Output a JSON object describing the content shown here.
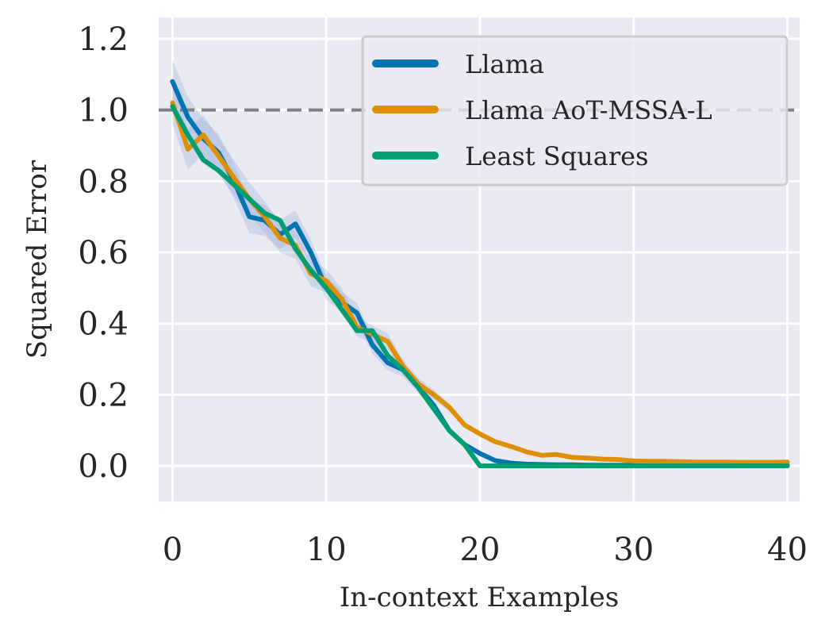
{
  "chart_data": {
    "type": "line",
    "title": "",
    "xlabel": "In-context Examples",
    "ylabel": "Squared Error",
    "xlim": [
      -0.9,
      40.8
    ],
    "ylim": [
      -0.1,
      1.26
    ],
    "xticks": [
      0,
      10,
      20,
      30,
      40
    ],
    "xtick_labels": [
      "0",
      "10",
      "20",
      "30",
      "40"
    ],
    "yticks": [
      0.0,
      0.2,
      0.4,
      0.6,
      0.8,
      1.0,
      1.2
    ],
    "ytick_labels": [
      "0.0",
      "0.2",
      "0.4",
      "0.6",
      "0.8",
      "1.0",
      "1.2"
    ],
    "grid": true,
    "background": "#eaeaf2",
    "legend_position": "top-right",
    "reference_line": {
      "y": 1.0,
      "style": "dashed",
      "color": "#808080"
    },
    "x": [
      0,
      1,
      2,
      3,
      4,
      5,
      6,
      7,
      8,
      9,
      10,
      11,
      12,
      13,
      14,
      15,
      16,
      17,
      18,
      19,
      20,
      21,
      22,
      23,
      24,
      25,
      26,
      27,
      28,
      29,
      30,
      31,
      32,
      33,
      34,
      35,
      36,
      37,
      38,
      39,
      40
    ],
    "series": [
      {
        "name": "Llama",
        "color": "#0173b2",
        "band_color": "#9fb3dd",
        "values": [
          1.08,
          0.98,
          0.92,
          0.88,
          0.8,
          0.7,
          0.69,
          0.65,
          0.68,
          0.6,
          0.5,
          0.46,
          0.43,
          0.34,
          0.29,
          0.27,
          0.22,
          0.17,
          0.1,
          0.06,
          0.035,
          0.015,
          0.008,
          0.005,
          0.004,
          0.003,
          0.003,
          0.002,
          0.002,
          0.002,
          0.002,
          0.002,
          0.002,
          0.002,
          0.002,
          0.002,
          0.002,
          0.002,
          0.002,
          0.002,
          0.002
        ]
      },
      {
        "name": "Llama AoT-MSSA-L",
        "color": "#de8f05",
        "band_color": "#9fb3dd",
        "values": [
          1.02,
          0.89,
          0.93,
          0.87,
          0.81,
          0.75,
          0.7,
          0.64,
          0.62,
          0.54,
          0.52,
          0.47,
          0.39,
          0.37,
          0.35,
          0.28,
          0.23,
          0.2,
          0.165,
          0.115,
          0.09,
          0.068,
          0.055,
          0.04,
          0.03,
          0.032,
          0.024,
          0.022,
          0.019,
          0.018,
          0.014,
          0.013,
          0.013,
          0.012,
          0.011,
          0.011,
          0.011,
          0.01,
          0.01,
          0.01,
          0.011
        ]
      },
      {
        "name": "Least Squares",
        "color": "#029e73",
        "values": [
          1.01,
          0.93,
          0.86,
          0.83,
          0.79,
          0.75,
          0.71,
          0.69,
          0.61,
          0.55,
          0.5,
          0.44,
          0.38,
          0.38,
          0.31,
          0.27,
          0.22,
          0.16,
          0.1,
          0.06,
          0.0,
          0.0,
          0.0,
          0.0,
          0.0,
          0.0,
          0.0,
          0.0,
          0.0,
          0.0,
          0.0,
          0.0,
          0.0,
          0.0,
          0.0,
          0.0,
          0.0,
          0.0,
          0.0,
          0.0,
          0.0
        ]
      }
    ]
  }
}
